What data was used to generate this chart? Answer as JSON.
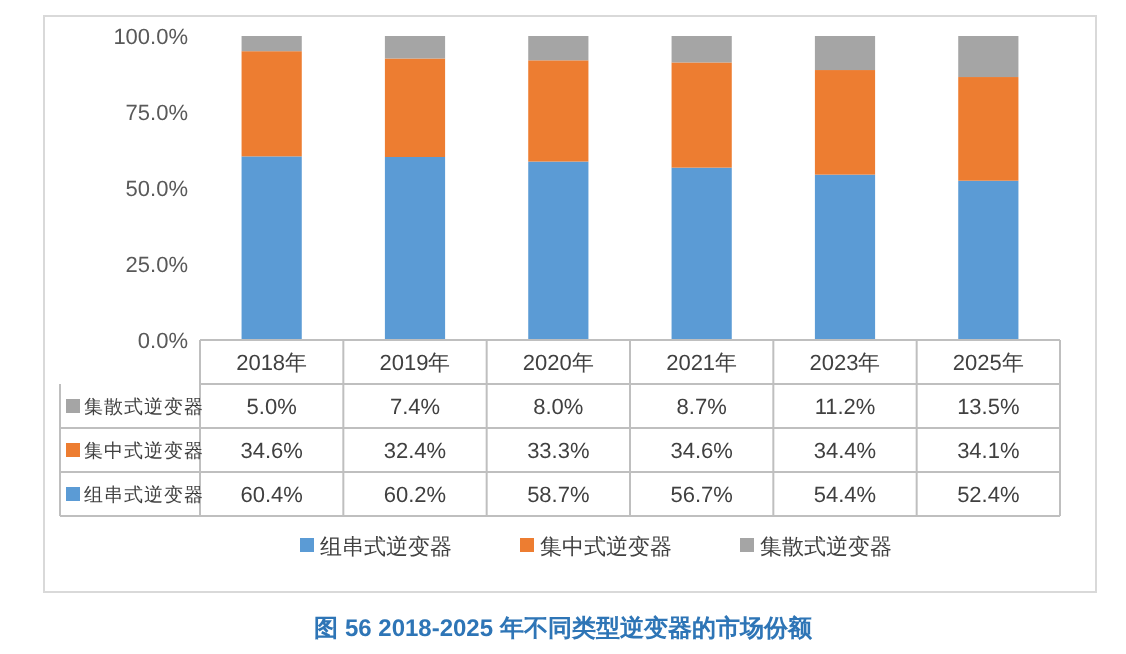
{
  "chart_data": {
    "type": "bar",
    "stacked": true,
    "title": "图 56   2018-2025 年不同类型逆变器的市场份额",
    "categories": [
      "2018年",
      "2019年",
      "2020年",
      "2021年",
      "2023年",
      "2025年"
    ],
    "series": [
      {
        "name": "组串式逆变器",
        "color": "#5b9bd5",
        "values": [
          60.4,
          60.2,
          58.7,
          56.7,
          54.4,
          52.4
        ],
        "value_labels": [
          "60.4%",
          "60.2%",
          "58.7%",
          "56.7%",
          "54.4%",
          "52.4%"
        ]
      },
      {
        "name": "集中式逆变器",
        "color": "#ed7d31",
        "values": [
          34.6,
          32.4,
          33.3,
          34.6,
          34.4,
          34.1
        ],
        "value_labels": [
          "34.6%",
          "32.4%",
          "33.3%",
          "34.6%",
          "34.4%",
          "34.1%"
        ]
      },
      {
        "name": "集散式逆变器",
        "color": "#a5a5a5",
        "values": [
          5.0,
          7.4,
          8.0,
          8.7,
          11.2,
          13.5
        ],
        "value_labels": [
          "5.0%",
          "7.4%",
          "8.0%",
          "8.7%",
          "11.2%",
          "13.5%"
        ]
      }
    ],
    "ylim": [
      0,
      100
    ],
    "yticks": [
      {
        "value": 0,
        "label": "0.0%"
      },
      {
        "value": 25,
        "label": "25.0%"
      },
      {
        "value": 50,
        "label": "50.0%"
      },
      {
        "value": 75,
        "label": "75.0%"
      },
      {
        "value": 100,
        "label": "100.0%"
      }
    ],
    "grid": false,
    "legend": "bottom"
  }
}
